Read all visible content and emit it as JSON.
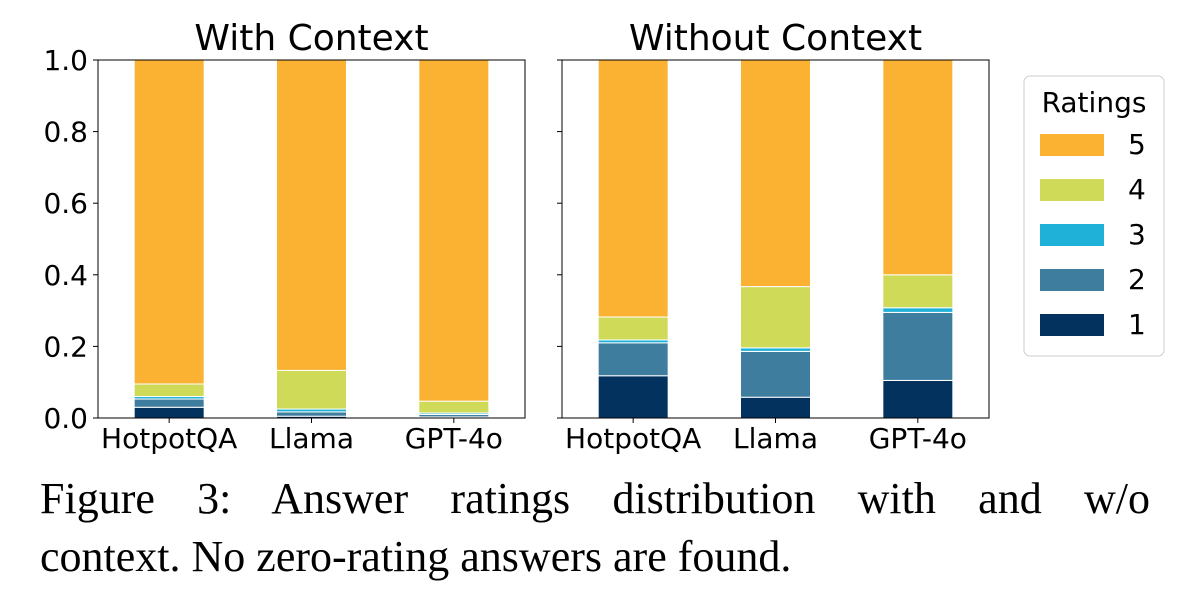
{
  "chart_data": {
    "type": "bar",
    "stacked": true,
    "legend": {
      "title": "Ratings",
      "placement": "right",
      "entries": [
        "5",
        "4",
        "3",
        "2",
        "1"
      ]
    },
    "colors": {
      "1": "#04325f",
      "2": "#3e7d9d",
      "3": "#1fb1d8",
      "4": "#cfda58",
      "5": "#fbb232"
    },
    "ylim": [
      0,
      1.0
    ],
    "yticks": [
      "0.0",
      "0.2",
      "0.4",
      "0.6",
      "0.8",
      "1.0"
    ],
    "grid": false,
    "panels": [
      {
        "title": "With Context",
        "categories": [
          "HotpotQA",
          "Llama",
          "GPT-4o"
        ],
        "series": [
          {
            "name": "1",
            "values": [
              0.03,
              0.005,
              0.003
            ]
          },
          {
            "name": "2",
            "values": [
              0.023,
              0.012,
              0.007
            ]
          },
          {
            "name": "3",
            "values": [
              0.007,
              0.008,
              0.004
            ]
          },
          {
            "name": "4",
            "values": [
              0.035,
              0.108,
              0.033
            ]
          },
          {
            "name": "5",
            "values": [
              0.905,
              0.867,
              0.953
            ]
          }
        ]
      },
      {
        "title": "Without Context",
        "categories": [
          "HotpotQA",
          "Llama",
          "GPT-4o"
        ],
        "series": [
          {
            "name": "1",
            "values": [
              0.118,
              0.058,
              0.105
            ]
          },
          {
            "name": "2",
            "values": [
              0.092,
              0.128,
              0.19
            ]
          },
          {
            "name": "3",
            "values": [
              0.008,
              0.01,
              0.013
            ]
          },
          {
            "name": "4",
            "values": [
              0.064,
              0.171,
              0.092
            ]
          },
          {
            "name": "5",
            "values": [
              0.718,
              0.633,
              0.6
            ]
          }
        ]
      }
    ]
  },
  "caption": {
    "line1": "Figure 3:  Answer ratings distribution with and w/o",
    "line2": "context. No zero-rating answers are found."
  }
}
